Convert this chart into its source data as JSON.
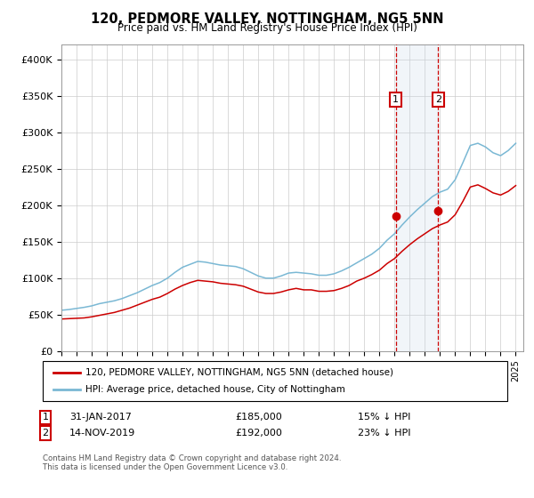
{
  "title": "120, PEDMORE VALLEY, NOTTINGHAM, NG5 5NN",
  "subtitle": "Price paid vs. HM Land Registry's House Price Index (HPI)",
  "footer": "Contains HM Land Registry data © Crown copyright and database right 2024.\nThis data is licensed under the Open Government Licence v3.0.",
  "legend_line1": "120, PEDMORE VALLEY, NOTTINGHAM, NG5 5NN (detached house)",
  "legend_line2": "HPI: Average price, detached house, City of Nottingham",
  "annotation1_label": "1",
  "annotation1_date": "31-JAN-2017",
  "annotation1_price": "£185,000",
  "annotation1_hpi": "15% ↓ HPI",
  "annotation2_label": "2",
  "annotation2_date": "14-NOV-2019",
  "annotation2_price": "£192,000",
  "annotation2_hpi": "23% ↓ HPI",
  "hpi_color": "#7ab8d4",
  "price_color": "#cc0000",
  "marker_color": "#cc0000",
  "annotation_box_color": "#cc0000",
  "vline_color": "#cc0000",
  "shade_color": "#c8d8e8",
  "ylim": [
    0,
    420000
  ],
  "yticks": [
    0,
    50000,
    100000,
    150000,
    200000,
    250000,
    300000,
    350000,
    400000
  ],
  "ytick_labels": [
    "£0",
    "£50K",
    "£100K",
    "£150K",
    "£200K",
    "£250K",
    "£300K",
    "£350K",
    "£400K"
  ],
  "sale1_year": 2017.08,
  "sale1_price": 185000,
  "sale2_year": 2019.87,
  "sale2_price": 192000,
  "hpi_years": [
    1995,
    1995.5,
    1996,
    1996.5,
    1997,
    1997.5,
    1998,
    1998.5,
    1999,
    1999.5,
    2000,
    2000.5,
    2001,
    2001.5,
    2002,
    2002.5,
    2003,
    2003.5,
    2004,
    2004.5,
    2005,
    2005.5,
    2006,
    2006.5,
    2007,
    2007.5,
    2008,
    2008.5,
    2009,
    2009.5,
    2010,
    2010.5,
    2011,
    2011.5,
    2012,
    2012.5,
    2013,
    2013.5,
    2014,
    2014.5,
    2015,
    2015.5,
    2016,
    2016.5,
    2017,
    2017.5,
    2018,
    2018.5,
    2019,
    2019.5,
    2020,
    2020.5,
    2021,
    2021.5,
    2022,
    2022.5,
    2023,
    2023.5,
    2024,
    2024.5,
    2025
  ],
  "hpi_values": [
    56000,
    57000,
    58500,
    60000,
    62000,
    65000,
    67000,
    69000,
    72000,
    76000,
    80000,
    85000,
    90000,
    94000,
    100000,
    108000,
    115000,
    119000,
    123000,
    122000,
    120000,
    118000,
    117000,
    116000,
    113000,
    108000,
    103000,
    100000,
    100000,
    103000,
    107000,
    108000,
    107000,
    106000,
    104000,
    104000,
    106000,
    110000,
    115000,
    121000,
    127000,
    133000,
    141000,
    152000,
    161000,
    173000,
    184000,
    194000,
    203000,
    212000,
    218000,
    222000,
    235000,
    258000,
    282000,
    285000,
    280000,
    272000,
    268000,
    275000,
    285000
  ],
  "price_years": [
    1995,
    1995.5,
    1996,
    1996.5,
    1997,
    1997.5,
    1998,
    1998.5,
    1999,
    1999.5,
    2000,
    2000.5,
    2001,
    2001.5,
    2002,
    2002.5,
    2003,
    2003.5,
    2004,
    2004.5,
    2005,
    2005.5,
    2006,
    2006.5,
    2007,
    2007.5,
    2008,
    2008.5,
    2009,
    2009.5,
    2010,
    2010.5,
    2011,
    2011.5,
    2012,
    2012.5,
    2013,
    2013.5,
    2014,
    2014.5,
    2015,
    2015.5,
    2016,
    2016.5,
    2017,
    2017.5,
    2018,
    2018.5,
    2019,
    2019.5,
    2020,
    2020.5,
    2021,
    2021.5,
    2022,
    2022.5,
    2023,
    2023.5,
    2024,
    2024.5,
    2025
  ],
  "price_values": [
    44000,
    44500,
    45000,
    45500,
    47000,
    49000,
    51000,
    53000,
    56000,
    59000,
    63000,
    67000,
    71000,
    74000,
    79000,
    85000,
    90000,
    94000,
    97000,
    96000,
    95000,
    93000,
    92000,
    91000,
    89000,
    85000,
    81000,
    79000,
    79000,
    81000,
    84000,
    86000,
    84000,
    84000,
    82000,
    82000,
    83000,
    86000,
    90000,
    96000,
    100000,
    105000,
    111000,
    120000,
    127000,
    137000,
    146000,
    154000,
    161000,
    168000,
    173000,
    177000,
    187000,
    205000,
    225000,
    228000,
    223000,
    217000,
    214000,
    219000,
    227000
  ]
}
